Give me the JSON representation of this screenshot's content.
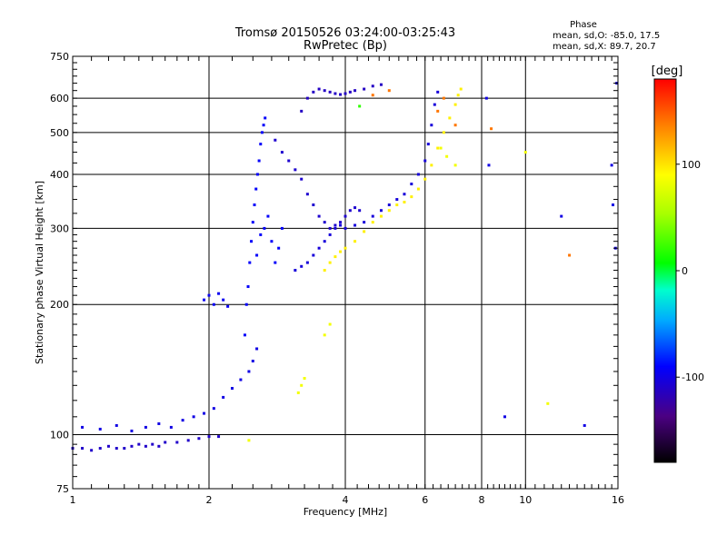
{
  "chart_data": {
    "type": "scatter",
    "title": "Tromsø 20150526 03:24:00-03:25:43",
    "subtitle": "RwPretec (Bp)",
    "xlabel": "Frequency [MHz]",
    "ylabel": "Stationary phase Virtual Height [km]",
    "x_scale": "log",
    "y_scale": "log",
    "xlim": [
      1,
      16
    ],
    "ylim": [
      75,
      750
    ],
    "x_ticks": [
      1,
      2,
      4,
      6,
      8,
      10,
      16
    ],
    "x_tick_labels": [
      "1",
      "2",
      "4",
      "6",
      "8",
      "10",
      "16"
    ],
    "y_ticks": [
      75,
      100,
      200,
      300,
      400,
      500,
      600,
      750
    ],
    "y_tick_labels": [
      "75",
      "100",
      "200",
      "300",
      "400",
      "500",
      "600",
      "750"
    ],
    "grid": true,
    "stats": {
      "heading": "Phase",
      "line_o": "mean, sd,O: -85.0, 17.5",
      "line_x": "mean, sd,X:  89.7, 20.7"
    },
    "colorbar": {
      "label": "[deg]",
      "tick_labels": [
        "100",
        "0",
        "-100"
      ],
      "ticks": [
        100,
        0,
        -100
      ],
      "range": [
        -180,
        180
      ]
    },
    "series": [
      {
        "phase": -110,
        "points": [
          [
            1.0,
            93
          ],
          [
            1.05,
            93
          ],
          [
            1.1,
            92
          ],
          [
            1.15,
            93
          ],
          [
            1.2,
            94
          ],
          [
            1.25,
            93
          ],
          [
            1.3,
            93
          ],
          [
            1.35,
            94
          ],
          [
            1.4,
            95
          ],
          [
            1.45,
            94
          ],
          [
            1.5,
            95
          ],
          [
            1.55,
            94
          ],
          [
            1.6,
            96
          ],
          [
            1.7,
            96
          ],
          [
            1.8,
            97
          ],
          [
            1.9,
            98
          ],
          [
            2.0,
            99
          ],
          [
            2.1,
            99
          ]
        ]
      },
      {
        "phase": -100,
        "points": [
          [
            1.05,
            104
          ],
          [
            1.15,
            103
          ],
          [
            1.25,
            105
          ],
          [
            1.35,
            102
          ],
          [
            1.45,
            104
          ],
          [
            1.55,
            106
          ],
          [
            1.65,
            104
          ],
          [
            1.75,
            108
          ],
          [
            1.85,
            110
          ],
          [
            1.95,
            112
          ],
          [
            2.05,
            115
          ],
          [
            2.15,
            122
          ],
          [
            2.25,
            128
          ],
          [
            2.35,
            134
          ],
          [
            2.45,
            140
          ],
          [
            2.5,
            148
          ],
          [
            2.55,
            158
          ]
        ]
      },
      {
        "phase": -95,
        "points": [
          [
            1.95,
            205
          ],
          [
            2.0,
            210
          ],
          [
            2.05,
            200
          ],
          [
            2.1,
            212
          ],
          [
            2.15,
            205
          ],
          [
            2.2,
            198
          ]
        ]
      },
      {
        "phase": -92,
        "points": [
          [
            2.4,
            170
          ],
          [
            2.42,
            200
          ],
          [
            2.44,
            220
          ],
          [
            2.46,
            250
          ],
          [
            2.48,
            280
          ],
          [
            2.5,
            310
          ],
          [
            2.52,
            340
          ],
          [
            2.54,
            370
          ],
          [
            2.56,
            400
          ],
          [
            2.58,
            430
          ],
          [
            2.6,
            470
          ],
          [
            2.62,
            500
          ],
          [
            2.64,
            520
          ],
          [
            2.66,
            540
          ],
          [
            2.6,
            290
          ],
          [
            2.55,
            260
          ],
          [
            2.65,
            300
          ],
          [
            2.7,
            320
          ],
          [
            2.75,
            280
          ],
          [
            2.8,
            250
          ],
          [
            2.85,
            270
          ],
          [
            2.9,
            300
          ]
        ]
      },
      {
        "phase": -108,
        "points": [
          [
            2.8,
            480
          ],
          [
            2.9,
            450
          ],
          [
            3.0,
            430
          ],
          [
            3.1,
            410
          ],
          [
            3.2,
            390
          ],
          [
            3.3,
            360
          ],
          [
            3.4,
            340
          ],
          [
            3.5,
            320
          ],
          [
            3.6,
            310
          ],
          [
            3.7,
            300
          ],
          [
            3.8,
            305
          ],
          [
            3.9,
            310
          ],
          [
            4.0,
            320
          ],
          [
            4.1,
            330
          ],
          [
            4.2,
            335
          ],
          [
            4.3,
            330
          ]
        ]
      },
      {
        "phase": -112,
        "points": [
          [
            3.2,
            560
          ],
          [
            3.3,
            600
          ],
          [
            3.4,
            620
          ],
          [
            3.5,
            630
          ],
          [
            3.6,
            625
          ],
          [
            3.7,
            620
          ],
          [
            3.8,
            615
          ],
          [
            3.9,
            612
          ],
          [
            4.0,
            615
          ],
          [
            4.1,
            620
          ],
          [
            4.2,
            625
          ],
          [
            4.4,
            630
          ],
          [
            4.6,
            640
          ],
          [
            4.8,
            645
          ]
        ]
      },
      {
        "phase": -104,
        "points": [
          [
            3.1,
            240
          ],
          [
            3.2,
            245
          ],
          [
            3.3,
            250
          ],
          [
            3.4,
            260
          ],
          [
            3.5,
            270
          ],
          [
            3.6,
            280
          ],
          [
            3.7,
            290
          ],
          [
            3.8,
            300
          ],
          [
            3.9,
            305
          ],
          [
            4.0,
            300
          ],
          [
            4.2,
            305
          ],
          [
            4.4,
            310
          ],
          [
            4.6,
            320
          ],
          [
            4.8,
            330
          ],
          [
            5.0,
            340
          ],
          [
            5.2,
            350
          ],
          [
            5.4,
            360
          ],
          [
            5.6,
            380
          ],
          [
            5.8,
            400
          ],
          [
            6.0,
            430
          ],
          [
            6.1,
            470
          ],
          [
            6.2,
            520
          ],
          [
            6.3,
            580
          ],
          [
            6.4,
            620
          ]
        ]
      },
      {
        "phase": 95,
        "points": [
          [
            3.6,
            240
          ],
          [
            3.7,
            250
          ],
          [
            3.8,
            258
          ],
          [
            3.9,
            265
          ],
          [
            4.0,
            270
          ],
          [
            4.2,
            280
          ],
          [
            4.4,
            295
          ],
          [
            4.6,
            310
          ],
          [
            4.8,
            320
          ],
          [
            5.0,
            330
          ],
          [
            5.2,
            340
          ],
          [
            5.4,
            345
          ],
          [
            5.6,
            355
          ],
          [
            5.8,
            370
          ],
          [
            6.0,
            390
          ],
          [
            6.2,
            420
          ],
          [
            6.4,
            460
          ],
          [
            6.6,
            500
          ],
          [
            6.8,
            540
          ],
          [
            7.0,
            580
          ],
          [
            7.1,
            610
          ],
          [
            7.2,
            630
          ]
        ]
      },
      {
        "phase": 85,
        "points": [
          [
            2.45,
            97
          ],
          [
            3.15,
            125
          ],
          [
            3.2,
            130
          ],
          [
            3.25,
            135
          ],
          [
            3.6,
            170
          ],
          [
            3.7,
            180
          ],
          [
            6.5,
            460
          ],
          [
            6.7,
            440
          ],
          [
            7.0,
            420
          ],
          [
            10.0,
            450
          ],
          [
            11.2,
            118
          ]
        ]
      },
      {
        "phase": 140,
        "points": [
          [
            4.6,
            610
          ],
          [
            5.0,
            625
          ],
          [
            6.4,
            560
          ],
          [
            6.6,
            600
          ],
          [
            7.0,
            520
          ],
          [
            8.4,
            510
          ],
          [
            12.5,
            260
          ]
        ]
      },
      {
        "phase": -100,
        "points": [
          [
            8.2,
            600
          ],
          [
            8.3,
            420
          ],
          [
            12.0,
            320
          ],
          [
            15.5,
            420
          ],
          [
            15.6,
            340
          ],
          [
            15.8,
            270
          ],
          [
            15.9,
            650
          ],
          [
            13.5,
            105
          ],
          [
            9.0,
            110
          ]
        ]
      },
      {
        "phase": 20,
        "points": [
          [
            4.3,
            575
          ]
        ]
      }
    ]
  }
}
